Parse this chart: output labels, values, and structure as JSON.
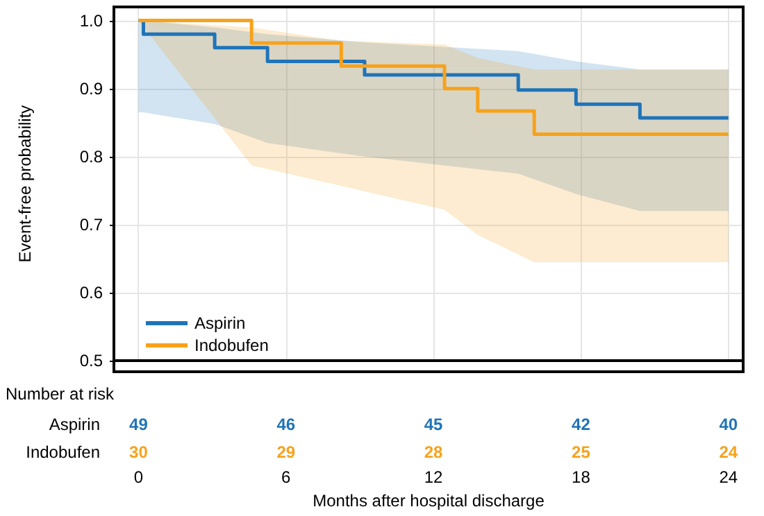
{
  "chart_data": {
    "type": "step",
    "ylabel": "Event-free probability",
    "xlabel": "Months after hospital discharge",
    "xlim": [
      -1,
      24.6
    ],
    "ylim": [
      0.5,
      1.02
    ],
    "xticks": [
      0,
      6,
      12,
      18,
      24
    ],
    "yticks": [
      0.5,
      0.6,
      0.7,
      0.8,
      0.9,
      {
        "value": 1,
        "label": "1.0"
      }
    ],
    "grid": true,
    "legend": "bottom left",
    "marker": "none",
    "series": [
      {
        "name": "Aspirin",
        "color": "#1f74b8",
        "x": [
          0,
          0.2,
          3.1,
          5.25,
          9.2,
          15.45,
          17.8,
          20.4,
          24
        ],
        "values": [
          1.0,
          0.98,
          0.96,
          0.94,
          0.92,
          0.898,
          0.877,
          0.857,
          0.857
        ],
        "lower": [
          0.865,
          0.865,
          0.848,
          0.82,
          0.8,
          0.775,
          0.745,
          0.72,
          0.72
        ],
        "upper": [
          1.0,
          1.0,
          0.99,
          0.98,
          0.968,
          0.955,
          0.94,
          0.928,
          0.928
        ]
      },
      {
        "name": "Indobufen",
        "color": "#f7a21b",
        "x": [
          0,
          4.6,
          8.25,
          12.45,
          13.8,
          16.1,
          24
        ],
        "values": [
          1.0,
          0.967,
          0.933,
          0.9,
          0.867,
          0.833,
          0.833
        ],
        "lower": [
          1.0,
          0.787,
          0.757,
          0.722,
          0.685,
          0.645,
          0.645
        ],
        "upper": [
          1.0,
          0.99,
          0.97,
          0.965,
          0.945,
          0.928,
          0.928
        ]
      }
    ],
    "annotations": [
      "Number at risk",
      "49",
      "46",
      "45",
      "42",
      "40",
      "30",
      "29",
      "28",
      "25",
      "24"
    ]
  }
}
